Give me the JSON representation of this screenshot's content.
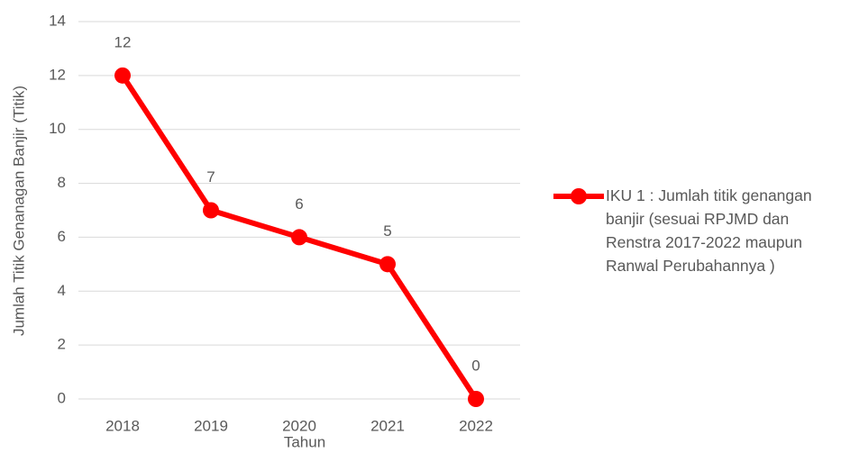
{
  "chart_data": {
    "type": "line",
    "x_label": "Tahun",
    "y_label": "Jumlah Titik Genanagan Banjir (Titik)",
    "categories": [
      "2018",
      "2019",
      "2020",
      "2021",
      "2022"
    ],
    "series": [
      {
        "name": "IKU 1 : Jumlah titik genangan banjir (sesuai RPJMD dan Renstra 2017-2022 maupun Ranwal Perubahannya )",
        "color": "#ff0000",
        "values": [
          12,
          7,
          6,
          5,
          0
        ]
      }
    ],
    "ylim": [
      0,
      14
    ],
    "yticks": [
      0,
      2,
      4,
      6,
      8,
      10,
      12,
      14
    ],
    "grid": true,
    "legend": "right"
  }
}
